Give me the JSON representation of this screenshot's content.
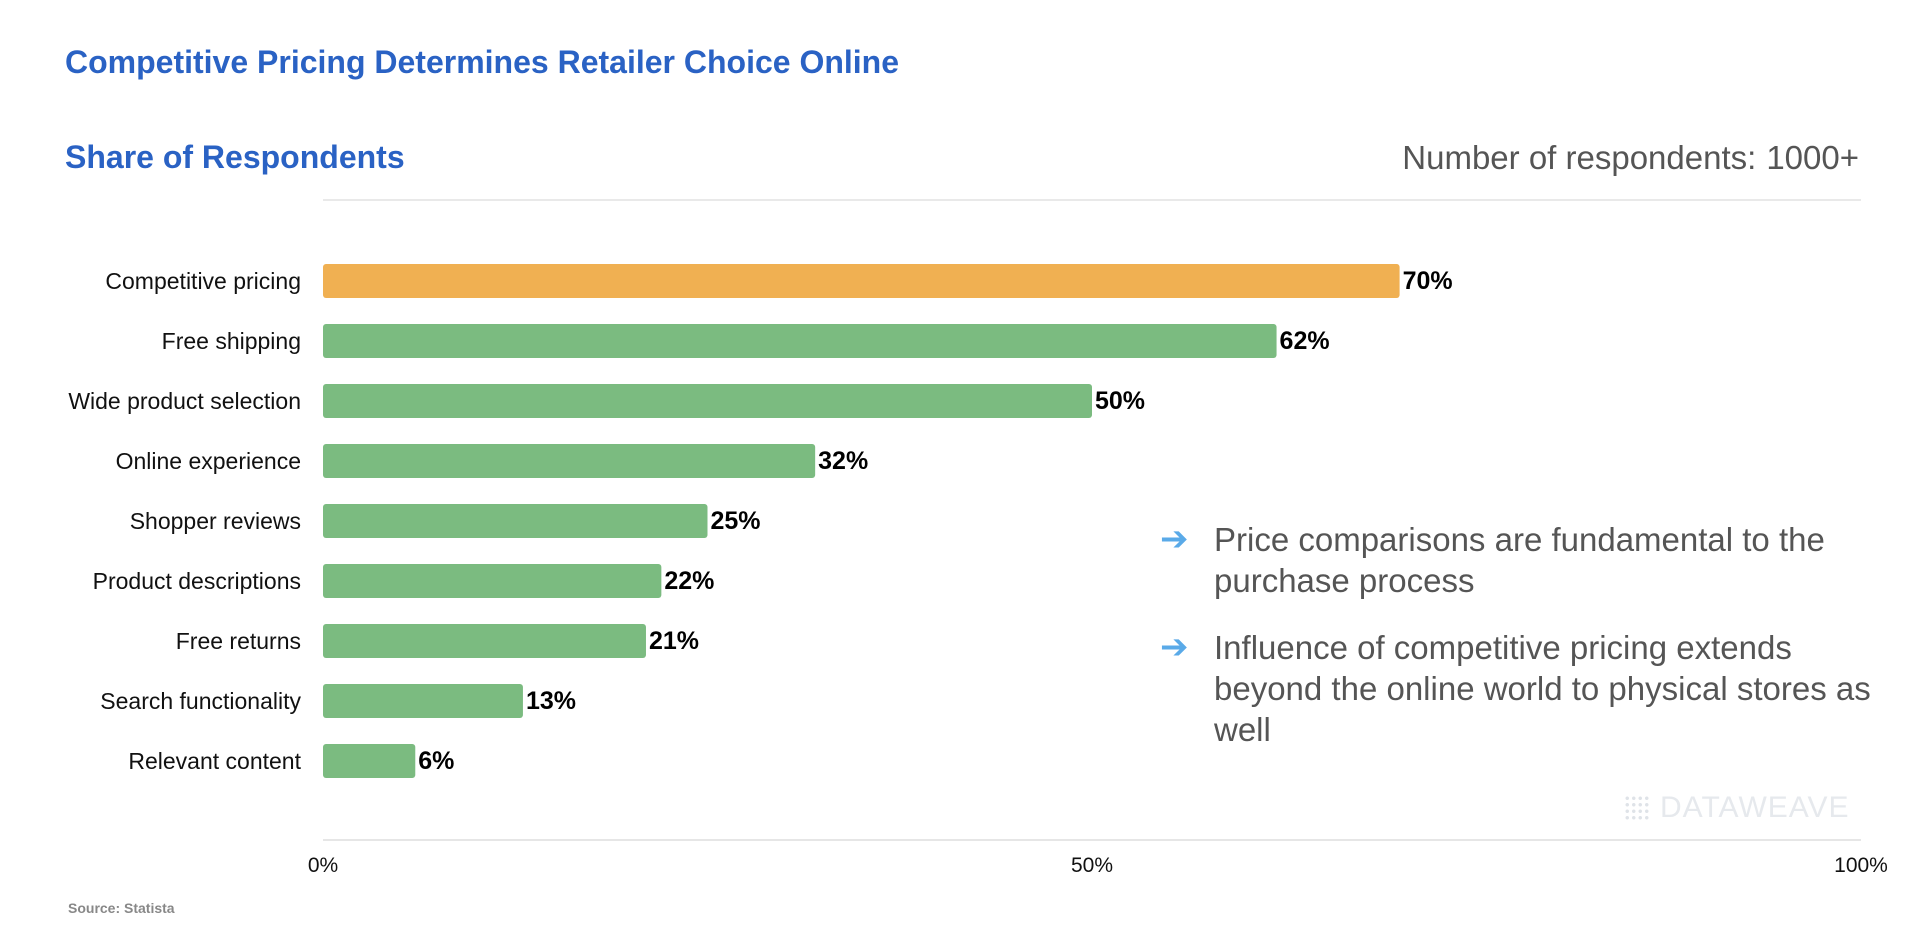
{
  "title": "Competitive Pricing Determines Retailer Choice Online",
  "subtitle": "Share of Respondents",
  "respondents": {
    "label": "Number of respondents:",
    "value": "1000+"
  },
  "chart_data": {
    "type": "bar",
    "orientation": "horizontal",
    "title": "Competitive Pricing Determines Retailer Choice Online",
    "subtitle": "Share of Respondents",
    "xlabel": "",
    "ylabel": "",
    "xlim": [
      0,
      100
    ],
    "x_ticks": [
      {
        "value": 0,
        "label": "0%"
      },
      {
        "value": 50,
        "label": "50%"
      },
      {
        "value": 100,
        "label": "100%"
      }
    ],
    "categories": [
      "Competitive pricing",
      "Free shipping",
      "Wide product selection",
      "Online experience",
      "Shopper reviews",
      "Product descriptions",
      "Free returns",
      "Search functionality",
      "Relevant content"
    ],
    "values": [
      70,
      62,
      50,
      32,
      25,
      22,
      21,
      13,
      6
    ],
    "value_labels": [
      "70%",
      "62%",
      "50%",
      "32%",
      "25%",
      "22%",
      "21%",
      "13%",
      "6%"
    ],
    "highlight_color": "#f0b052",
    "bar_color": "#7bbb80",
    "grid": false
  },
  "insights": [
    {
      "icon": "arrow-right-icon",
      "text": "Price comparisons are fundamental to the purchase process"
    },
    {
      "icon": "arrow-right-icon",
      "text": "Influence of competitive pricing extends beyond the online world to physical stores as well"
    }
  ],
  "watermark": "DATAWEAVE",
  "source": "Source: Statista",
  "colors": {
    "title": "#2a62c4",
    "arrow": "#5aaae8",
    "text": "#555555"
  }
}
